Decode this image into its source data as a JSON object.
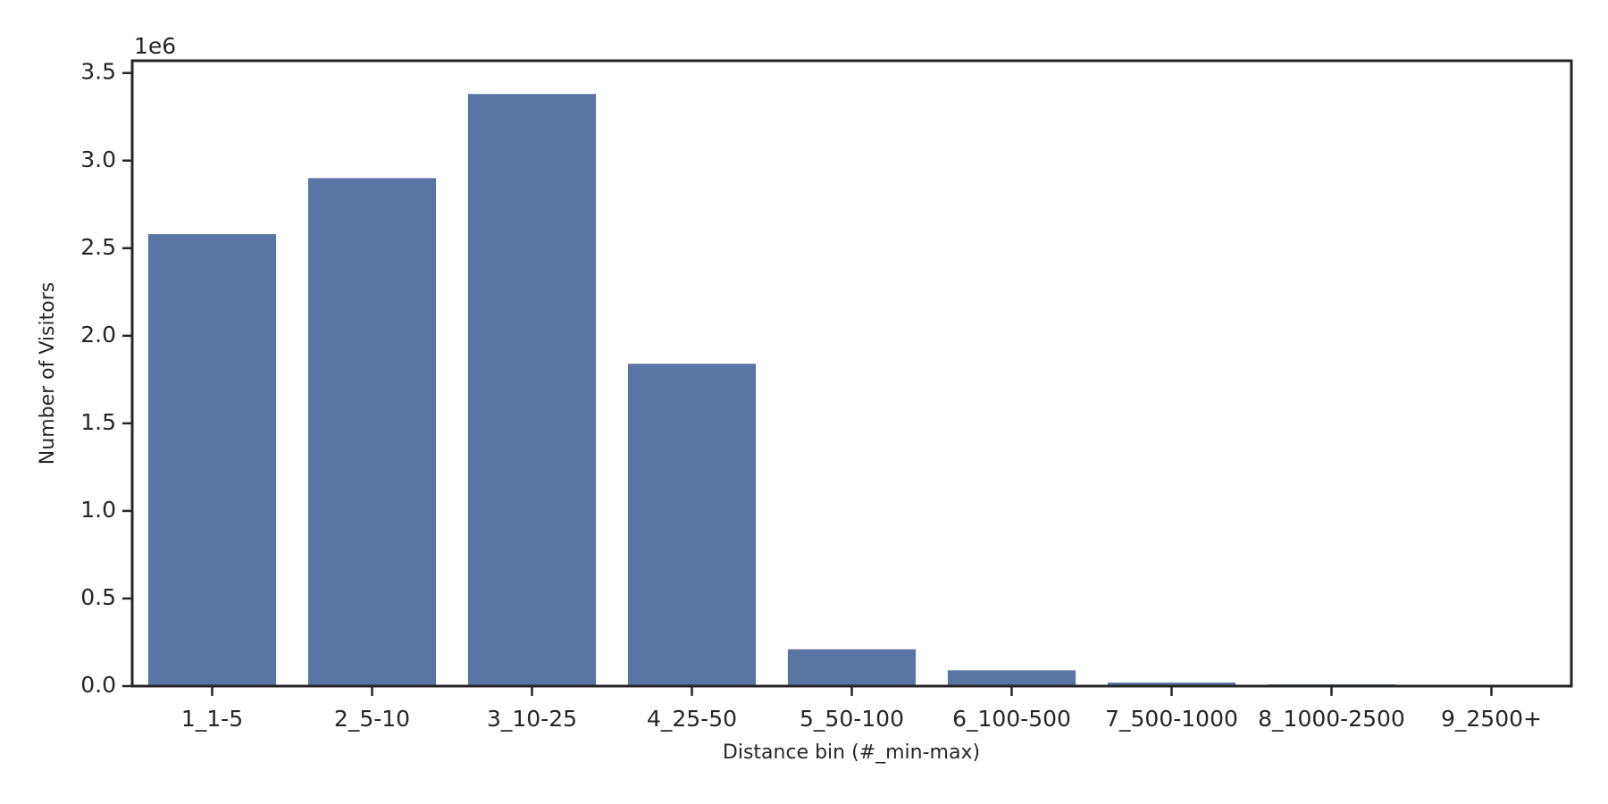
{
  "chart_data": {
    "type": "bar",
    "x_label": "Distance bin (#_min-max)",
    "y_label": "Number of Visitors",
    "y_offset_label": "1e6",
    "categories": [
      "1_1-5",
      "2_5-10",
      "3_10-25",
      "4_25-50",
      "5_50-100",
      "6_100-500",
      "7_500-1000",
      "8_1000-2500",
      "9_2500+"
    ],
    "values": [
      2.58,
      2.9,
      3.38,
      1.84,
      0.21,
      0.09,
      0.02,
      0.01,
      0.003
    ],
    "color": "#5975a4",
    "ylim": [
      0,
      3.57
    ],
    "yticks": [
      {
        "value": 0,
        "label": "0.0"
      },
      0.5,
      {
        "value": 1,
        "label": "1.0"
      },
      1.5,
      {
        "value": 2,
        "label": "2.0"
      },
      2.5,
      {
        "value": 3,
        "label": "3.0"
      },
      3.5
    ],
    "grid": false
  }
}
